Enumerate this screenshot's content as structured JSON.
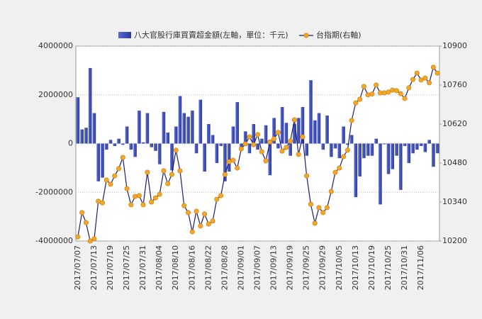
{
  "chart_data": {
    "type": "bar_line",
    "categories": [
      "2017/07/07",
      null,
      null,
      null,
      "2017/07/13",
      null,
      null,
      null,
      "2017/07/19",
      null,
      null,
      null,
      "2017/07/25",
      null,
      null,
      null,
      "2017/07/31",
      null,
      null,
      null,
      "2017/08/04",
      null,
      null,
      null,
      "2017/08/10",
      null,
      null,
      null,
      "2017/08/16",
      null,
      null,
      null,
      "2017/08/22",
      null,
      null,
      null,
      "2017/08/28",
      null,
      null,
      null,
      "2017/09/01",
      null,
      null,
      null,
      "2017/09/07",
      null,
      null,
      null,
      "2017/09/13",
      null,
      null,
      null,
      "2017/09/19",
      null,
      null,
      null,
      "2017/09/25",
      null,
      null,
      null,
      "2017/09/29",
      null,
      null,
      null,
      "2017/10/05",
      null,
      null,
      null,
      "2017/10/13",
      null,
      null,
      null,
      "2017/10/19",
      null,
      null,
      null,
      "2017/10/25",
      null,
      null,
      null,
      "2017/10/31",
      null,
      null,
      null,
      "2017/11/06",
      null,
      null,
      null,
      null
    ],
    "series": [
      {
        "name": "八大官股行庫買賣超金額(左軸，單位：千元)",
        "color": "#2b3a9e",
        "axis": "y",
        "values": [
          1900000,
          580000,
          650000,
          3100000,
          1250000,
          -1550000,
          -1400000,
          -250000,
          150000,
          -100000,
          200000,
          -50000,
          700000,
          -250000,
          -550000,
          1350000,
          50000,
          1250000,
          -150000,
          -300000,
          -850000,
          1300000,
          450000,
          -1100000,
          700000,
          1950000,
          1250000,
          1100000,
          1350000,
          -400000,
          1800000,
          -1150000,
          800000,
          350000,
          -800000,
          -100000,
          -1550000,
          -1150000,
          700000,
          1700000,
          -150000,
          500000,
          -400000,
          800000,
          -250000,
          200000,
          750000,
          -1300000,
          1050000,
          -200000,
          1500000,
          850000,
          -500000,
          800000,
          1050000,
          1500000,
          -500000,
          2600000,
          950000,
          1250000,
          -250000,
          1150000,
          -550000,
          -200000,
          -600000,
          700000,
          -50000,
          350000,
          -2200000,
          -1350000,
          -600000,
          -500000,
          -500000,
          200000,
          -2500000,
          -30000,
          -1250000,
          -1050000,
          -500000,
          -1900000,
          -100000,
          -800000,
          -400000,
          -250000,
          -100000,
          -350000,
          150000,
          -950000,
          -400000
        ]
      },
      {
        "name": "台指期(右軸)",
        "color": "#1c1c6e",
        "marker_color": "#f5a623",
        "axis": "y2",
        "values": [
          10215,
          10302,
          10266,
          10200,
          10208,
          10343,
          10337,
          10419,
          10404,
          10434,
          10460,
          10500,
          10388,
          10330,
          10360,
          10363,
          10330,
          10447,
          10340,
          10355,
          10368,
          10452,
          10406,
          10439,
          10526,
          10452,
          10327,
          10302,
          10233,
          10307,
          10254,
          10297,
          10261,
          10272,
          10350,
          10363,
          10439,
          10485,
          10490,
          10462,
          10531,
          10549,
          10574,
          10546,
          10582,
          10521,
          10488,
          10556,
          10567,
          10590,
          10523,
          10536,
          10559,
          10635,
          10511,
          10574,
          10434,
          10332,
          10264,
          10320,
          10302,
          10320,
          10378,
          10447,
          10462,
          10503,
          10526,
          10633,
          10696,
          10709,
          10755,
          10725,
          10728,
          10760,
          10732,
          10732,
          10735,
          10742,
          10740,
          10729,
          10712,
          10750,
          10780,
          10803,
          10778,
          10785,
          10768,
          10824,
          10803
        ]
      }
    ],
    "ylim": [
      -4000000,
      4000000
    ],
    "yticks": [
      -4000000,
      -2000000,
      0,
      2000000,
      4000000
    ],
    "y2lim": [
      10200,
      10900
    ],
    "y2ticks": [
      10200,
      10340,
      10480,
      10620,
      10760,
      10900
    ],
    "grid": true
  }
}
